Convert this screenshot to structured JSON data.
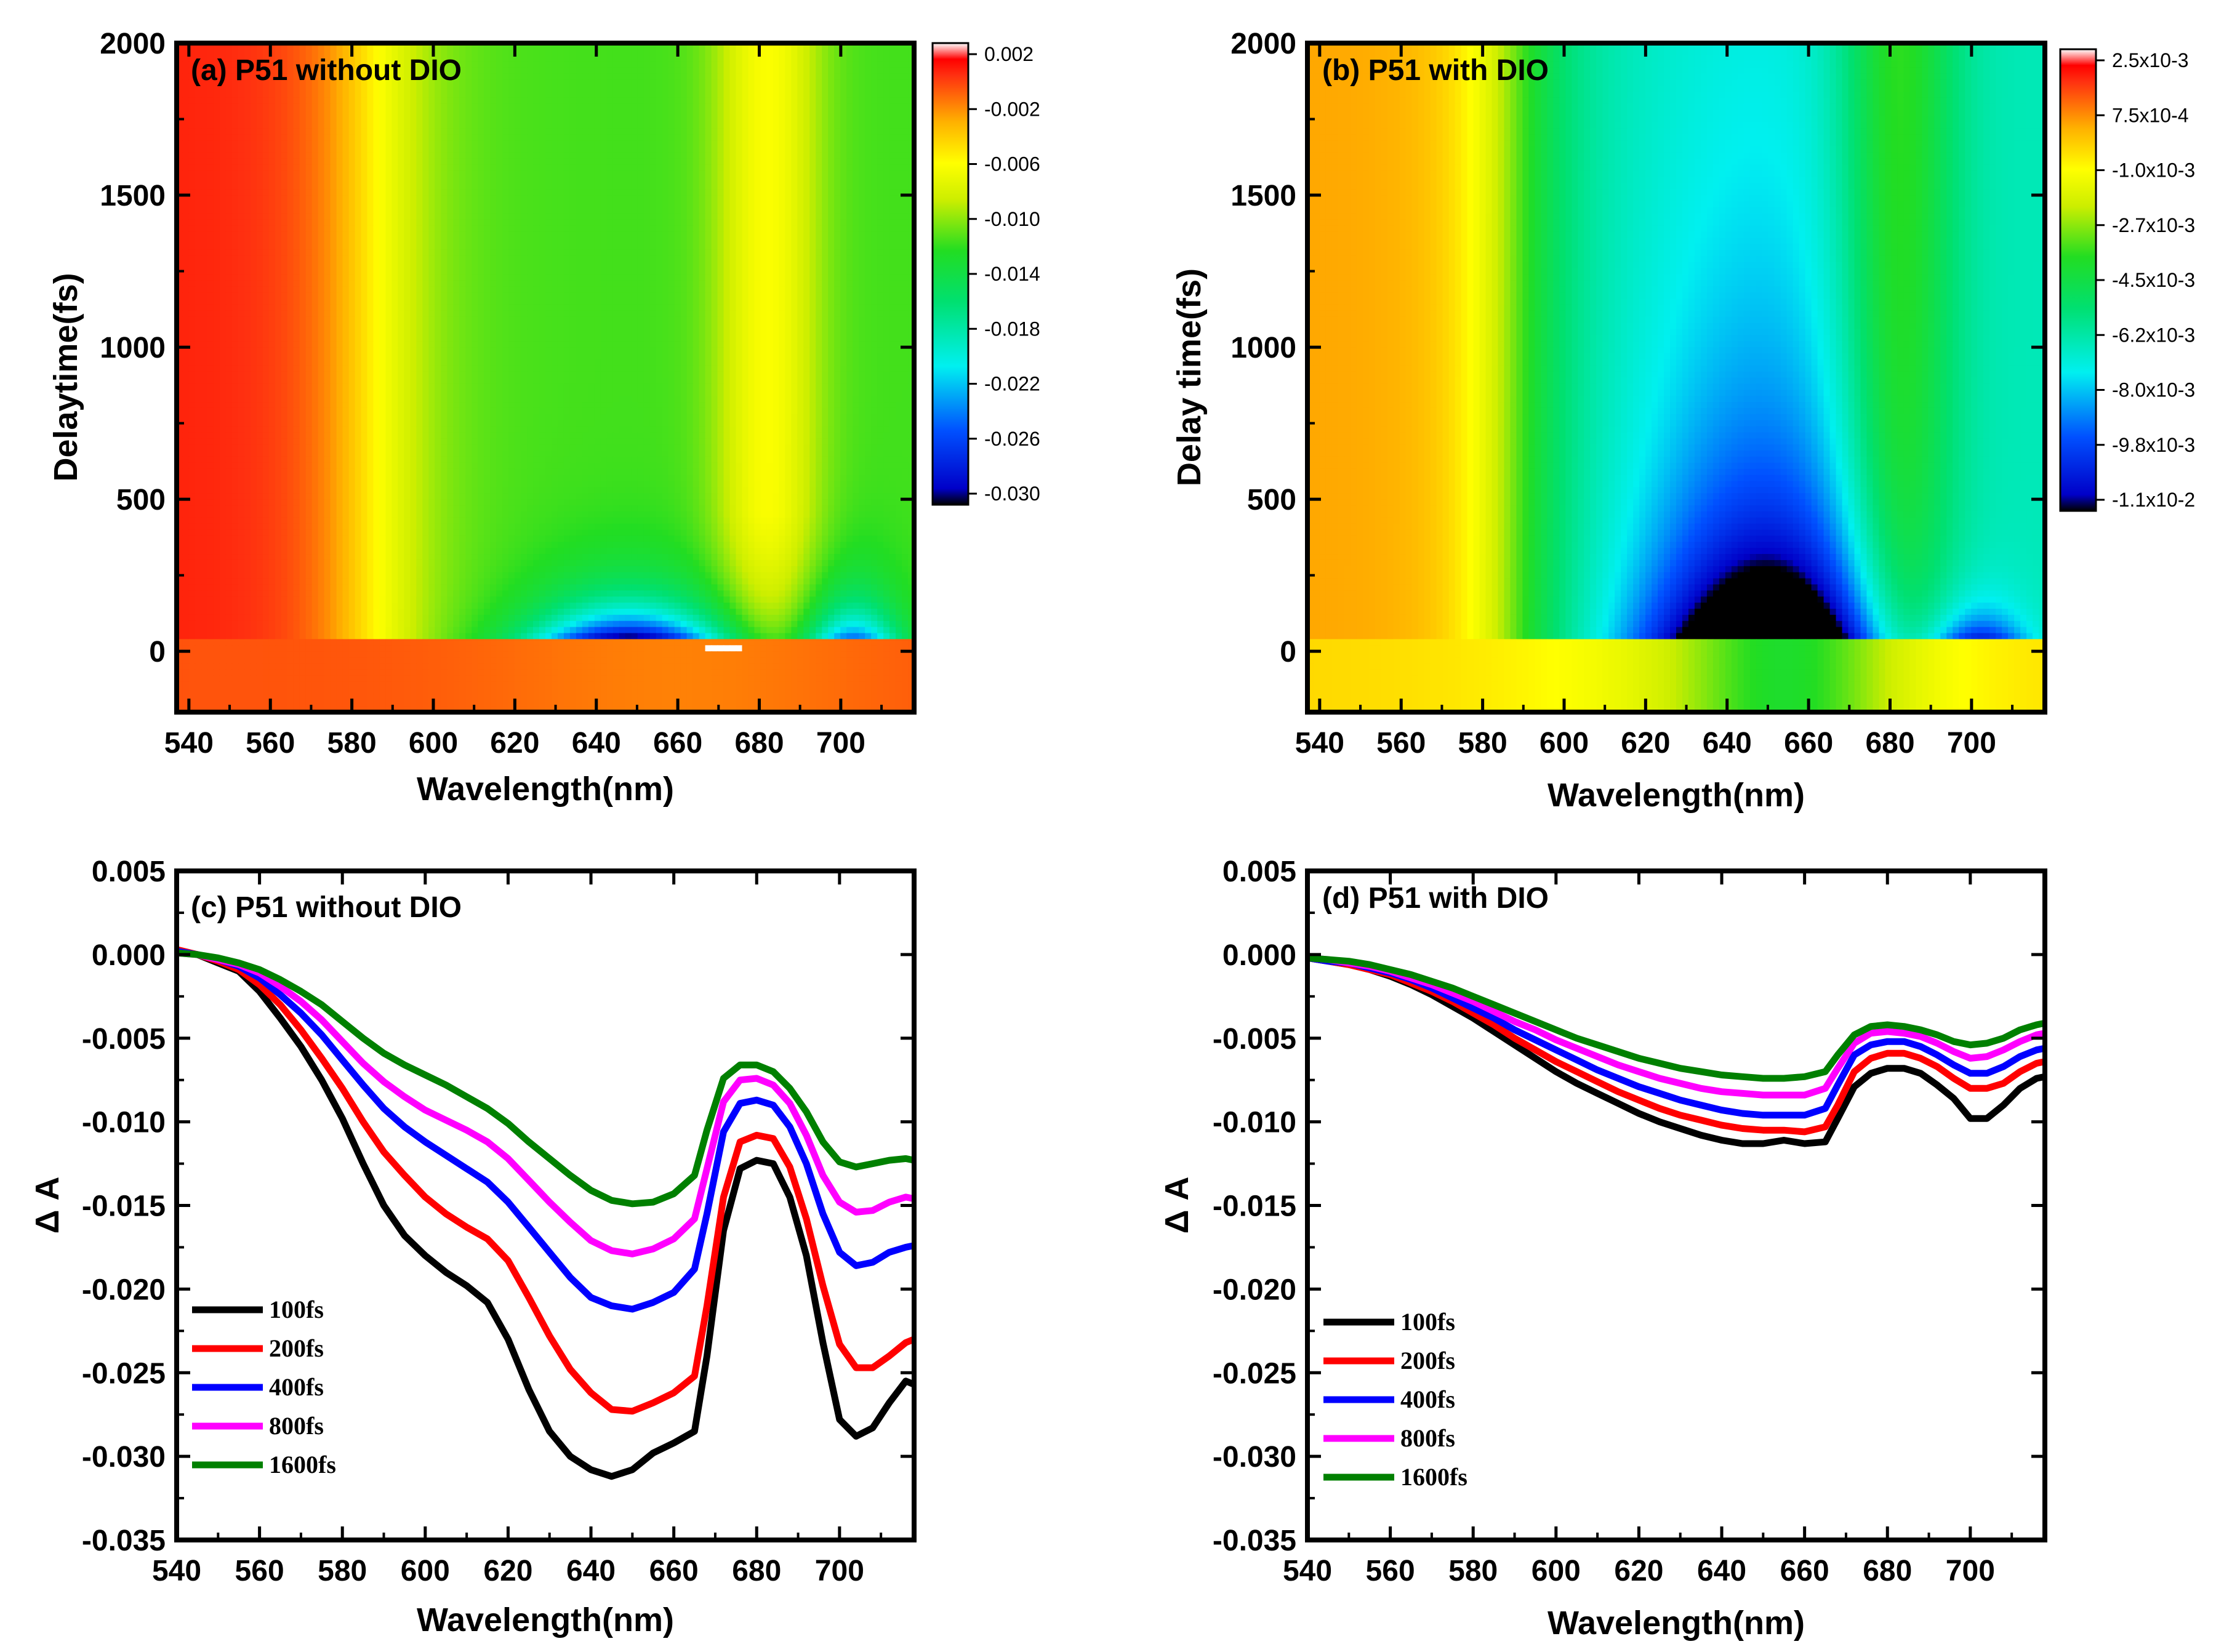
{
  "chart_data": [
    {
      "type": "heatmap",
      "panel": "a",
      "title": "(a) P51 without DIO",
      "xlabel": "Wavelength(nm)",
      "ylabel": "Delaytime(fs)",
      "xlim": [
        537,
        718
      ],
      "ylim": [
        -200,
        2000
      ],
      "xticks": [
        "540",
        "560",
        "580",
        "600",
        "620",
        "640",
        "660",
        "680",
        "700"
      ],
      "yticks": [
        "0",
        "500",
        "1000",
        "1500",
        "2000"
      ],
      "colorbar": {
        "min": -0.031,
        "max": 0.0028,
        "labels": [
          "0.002",
          "-0.002",
          "-0.006",
          "-0.010",
          "-0.014",
          "-0.018",
          "-0.022",
          "-0.026",
          "-0.030"
        ]
      },
      "features": {
        "early_time_band_fs": [
          -120,
          40
        ],
        "ground_state_bleach_minimum": {
          "wavelength_nm": 647,
          "delay_fs": 80,
          "value": -0.031
        },
        "secondary_minimum": {
          "wavelength_nm": 702,
          "delay_fs": 70,
          "value": -0.027
        },
        "long_lived_peak_nm": 680
      }
    },
    {
      "type": "heatmap",
      "panel": "b",
      "title": "(b) P51 with DIO",
      "xlabel": "Wavelength(nm)",
      "ylabel": "Delay time(fs)",
      "xlim": [
        537,
        718
      ],
      "ylim": [
        -200,
        2000
      ],
      "xticks": [
        "540",
        "560",
        "580",
        "600",
        "620",
        "640",
        "660",
        "680",
        "700"
      ],
      "yticks": [
        "0",
        "500",
        "1000",
        "1500",
        "2000"
      ],
      "colorbar": {
        "min": -0.011,
        "max": 0.0025,
        "labels": [
          "2.5x10-3",
          "7.5x10-4",
          "-1.0x10-3",
          "-2.7x10-3",
          "-4.5x10-3",
          "-6.2x10-3",
          "-8.0x10-3",
          "-9.8x10-3",
          "-1.1x10-2"
        ]
      },
      "features": {
        "early_time_band_fs": [
          -120,
          40
        ],
        "ground_state_bleach_minimum": {
          "wavelength_nm": 658,
          "delay_fs": 70,
          "value": -0.0115
        },
        "secondary_minimum": {
          "wavelength_nm": 702,
          "delay_fs": 60,
          "value": -0.01
        }
      }
    },
    {
      "type": "line",
      "panel": "c",
      "title": "(c) P51 without DIO",
      "xlabel": "Wavelength(nm)",
      "ylabel": "Δ A",
      "xlim": [
        540,
        718
      ],
      "ylim": [
        -0.035,
        0.005
      ],
      "xticks": [
        "540",
        "560",
        "580",
        "600",
        "620",
        "640",
        "660",
        "680",
        "700"
      ],
      "yticks": [
        "0.005",
        "0.000",
        "-0.005",
        "-0.010",
        "-0.015",
        "-0.020",
        "-0.025",
        "-0.030",
        "-0.035"
      ],
      "x": [
        540,
        545,
        550,
        555,
        560,
        565,
        570,
        575,
        580,
        585,
        590,
        595,
        600,
        605,
        610,
        615,
        620,
        625,
        630,
        635,
        640,
        645,
        650,
        655,
        660,
        665,
        668,
        672,
        676,
        680,
        684,
        688,
        692,
        696,
        700,
        704,
        708,
        712,
        716,
        718
      ],
      "series": [
        {
          "name": "100fs",
          "color": "#000000",
          "values": [
            0.0002,
            0,
            -0.0005,
            -0.001,
            -0.0022,
            -0.0038,
            -0.0055,
            -0.0075,
            -0.0098,
            -0.0125,
            -0.015,
            -0.0168,
            -0.018,
            -0.019,
            -0.0198,
            -0.0208,
            -0.023,
            -0.026,
            -0.0285,
            -0.03,
            -0.0308,
            -0.0312,
            -0.0308,
            -0.0298,
            -0.0292,
            -0.0285,
            -0.024,
            -0.0165,
            -0.0128,
            -0.0123,
            -0.0125,
            -0.0145,
            -0.018,
            -0.0232,
            -0.0278,
            -0.0288,
            -0.0283,
            -0.0268,
            -0.0255,
            -0.0257
          ]
        },
        {
          "name": "200fs",
          "color": "#ff0000",
          "values": [
            0.0003,
            0,
            -0.0004,
            -0.0009,
            -0.0018,
            -0.003,
            -0.0045,
            -0.0062,
            -0.008,
            -0.01,
            -0.0118,
            -0.0132,
            -0.0145,
            -0.0155,
            -0.0163,
            -0.017,
            -0.0183,
            -0.0205,
            -0.0228,
            -0.0248,
            -0.0262,
            -0.0272,
            -0.0273,
            -0.0268,
            -0.0262,
            -0.0252,
            -0.021,
            -0.0145,
            -0.0112,
            -0.0108,
            -0.011,
            -0.0127,
            -0.0158,
            -0.0198,
            -0.0233,
            -0.0247,
            -0.0247,
            -0.024,
            -0.0232,
            -0.023
          ]
        },
        {
          "name": "400fs",
          "color": "#0000ff",
          "values": [
            0.0002,
            0,
            -0.0003,
            -0.0007,
            -0.0014,
            -0.0024,
            -0.0035,
            -0.0048,
            -0.0063,
            -0.0078,
            -0.0092,
            -0.0103,
            -0.0112,
            -0.012,
            -0.0128,
            -0.0136,
            -0.0148,
            -0.0163,
            -0.0178,
            -0.0193,
            -0.0205,
            -0.021,
            -0.0212,
            -0.0208,
            -0.0202,
            -0.0188,
            -0.0155,
            -0.0106,
            -0.0089,
            -0.0087,
            -0.009,
            -0.0103,
            -0.0125,
            -0.0155,
            -0.0178,
            -0.0186,
            -0.0184,
            -0.0178,
            -0.0175,
            -0.0174
          ]
        },
        {
          "name": "800fs",
          "color": "#ff00ff",
          "values": [
            0.0001,
            0,
            -0.0003,
            -0.0006,
            -0.0011,
            -0.0019,
            -0.0028,
            -0.0039,
            -0.0052,
            -0.0065,
            -0.0076,
            -0.0085,
            -0.0093,
            -0.0099,
            -0.0105,
            -0.0112,
            -0.0122,
            -0.0135,
            -0.0148,
            -0.016,
            -0.0171,
            -0.0177,
            -0.0179,
            -0.0176,
            -0.017,
            -0.0158,
            -0.0128,
            -0.0088,
            -0.0075,
            -0.0074,
            -0.0078,
            -0.0089,
            -0.0108,
            -0.0132,
            -0.0148,
            -0.0154,
            -0.0153,
            -0.0148,
            -0.0145,
            -0.0146
          ]
        },
        {
          "name": "1600fs",
          "color": "#008000",
          "values": [
            0.0001,
            0,
            -0.0002,
            -0.0005,
            -0.0009,
            -0.0015,
            -0.0022,
            -0.003,
            -0.004,
            -0.005,
            -0.0059,
            -0.0066,
            -0.0072,
            -0.0078,
            -0.0085,
            -0.0092,
            -0.0101,
            -0.0112,
            -0.0122,
            -0.0132,
            -0.0141,
            -0.0147,
            -0.0149,
            -0.0148,
            -0.0143,
            -0.0132,
            -0.0105,
            -0.0074,
            -0.0066,
            -0.0066,
            -0.007,
            -0.008,
            -0.0094,
            -0.0112,
            -0.0124,
            -0.0127,
            -0.0125,
            -0.0123,
            -0.0122,
            -0.0123
          ]
        }
      ],
      "legend": {
        "placement": "bottom-left"
      }
    },
    {
      "type": "line",
      "panel": "d",
      "title": "(d) P51 with DIO",
      "xlabel": "Wavelength(nm)",
      "ylabel": "Δ A",
      "xlim": [
        540,
        718
      ],
      "ylim": [
        -0.035,
        0.005
      ],
      "xticks": [
        "540",
        "560",
        "580",
        "600",
        "620",
        "640",
        "660",
        "680",
        "700"
      ],
      "yticks": [
        "0.005",
        "0.000",
        "-0.005",
        "-0.010",
        "-0.015",
        "-0.020",
        "-0.025",
        "-0.030",
        "-0.035"
      ],
      "x": [
        540,
        545,
        550,
        555,
        560,
        565,
        570,
        575,
        580,
        585,
        590,
        595,
        600,
        605,
        610,
        615,
        620,
        625,
        630,
        635,
        640,
        645,
        650,
        655,
        660,
        665,
        668,
        672,
        676,
        680,
        684,
        688,
        692,
        696,
        700,
        704,
        708,
        712,
        716,
        718
      ],
      "series": [
        {
          "name": "100fs",
          "color": "#000000",
          "values": [
            -0.0002,
            -0.0004,
            -0.0006,
            -0.0009,
            -0.0013,
            -0.0018,
            -0.0024,
            -0.0031,
            -0.0038,
            -0.0046,
            -0.0054,
            -0.0062,
            -0.007,
            -0.0077,
            -0.0083,
            -0.0089,
            -0.0095,
            -0.01,
            -0.0104,
            -0.0108,
            -0.0111,
            -0.0113,
            -0.0113,
            -0.0111,
            -0.0113,
            -0.0112,
            -0.0098,
            -0.0079,
            -0.0071,
            -0.0068,
            -0.0068,
            -0.0071,
            -0.0078,
            -0.0086,
            -0.0098,
            -0.0098,
            -0.009,
            -0.008,
            -0.0074,
            -0.0073
          ]
        },
        {
          "name": "200fs",
          "color": "#ff0000",
          "values": [
            -0.0002,
            -0.0004,
            -0.0006,
            -0.0009,
            -0.0012,
            -0.0017,
            -0.0022,
            -0.0028,
            -0.0035,
            -0.0042,
            -0.005,
            -0.0057,
            -0.0064,
            -0.007,
            -0.0076,
            -0.0082,
            -0.0087,
            -0.0092,
            -0.0096,
            -0.0099,
            -0.0102,
            -0.0104,
            -0.0105,
            -0.0105,
            -0.0106,
            -0.0103,
            -0.009,
            -0.007,
            -0.0062,
            -0.0059,
            -0.0059,
            -0.0062,
            -0.0067,
            -0.0074,
            -0.008,
            -0.008,
            -0.0077,
            -0.007,
            -0.0065,
            -0.0064
          ]
        },
        {
          "name": "400fs",
          "color": "#0000ff",
          "values": [
            -0.0002,
            -0.0004,
            -0.0005,
            -0.0008,
            -0.0011,
            -0.0015,
            -0.002,
            -0.0026,
            -0.0032,
            -0.0038,
            -0.0045,
            -0.0051,
            -0.0057,
            -0.0063,
            -0.0069,
            -0.0074,
            -0.0079,
            -0.0083,
            -0.0087,
            -0.009,
            -0.0093,
            -0.0095,
            -0.0096,
            -0.0096,
            -0.0096,
            -0.0092,
            -0.0078,
            -0.006,
            -0.0054,
            -0.0052,
            -0.0052,
            -0.0055,
            -0.006,
            -0.0066,
            -0.0071,
            -0.0071,
            -0.0067,
            -0.0061,
            -0.0057,
            -0.0056
          ]
        },
        {
          "name": "800fs",
          "color": "#ff00ff",
          "values": [
            -0.0002,
            -0.0003,
            -0.0005,
            -0.0007,
            -0.001,
            -0.0014,
            -0.0018,
            -0.0023,
            -0.0028,
            -0.0034,
            -0.004,
            -0.0045,
            -0.0051,
            -0.0056,
            -0.0061,
            -0.0066,
            -0.007,
            -0.0074,
            -0.0077,
            -0.008,
            -0.0082,
            -0.0083,
            -0.0084,
            -0.0084,
            -0.0084,
            -0.008,
            -0.0068,
            -0.0053,
            -0.0047,
            -0.0046,
            -0.0047,
            -0.0049,
            -0.0053,
            -0.0058,
            -0.0062,
            -0.0061,
            -0.0057,
            -0.0052,
            -0.0048,
            -0.0047
          ]
        },
        {
          "name": "1600fs",
          "color": "#008000",
          "values": [
            -0.0002,
            -0.0003,
            -0.0004,
            -0.0006,
            -0.0009,
            -0.0012,
            -0.0016,
            -0.002,
            -0.0025,
            -0.003,
            -0.0035,
            -0.004,
            -0.0045,
            -0.005,
            -0.0054,
            -0.0058,
            -0.0062,
            -0.0065,
            -0.0068,
            -0.007,
            -0.0072,
            -0.0073,
            -0.0074,
            -0.0074,
            -0.0073,
            -0.007,
            -0.006,
            -0.0048,
            -0.0043,
            -0.0042,
            -0.0043,
            -0.0045,
            -0.0048,
            -0.0052,
            -0.0054,
            -0.0053,
            -0.005,
            -0.0045,
            -0.0042,
            -0.0041
          ]
        }
      ],
      "legend": {
        "placement": "bottom-left"
      }
    }
  ]
}
